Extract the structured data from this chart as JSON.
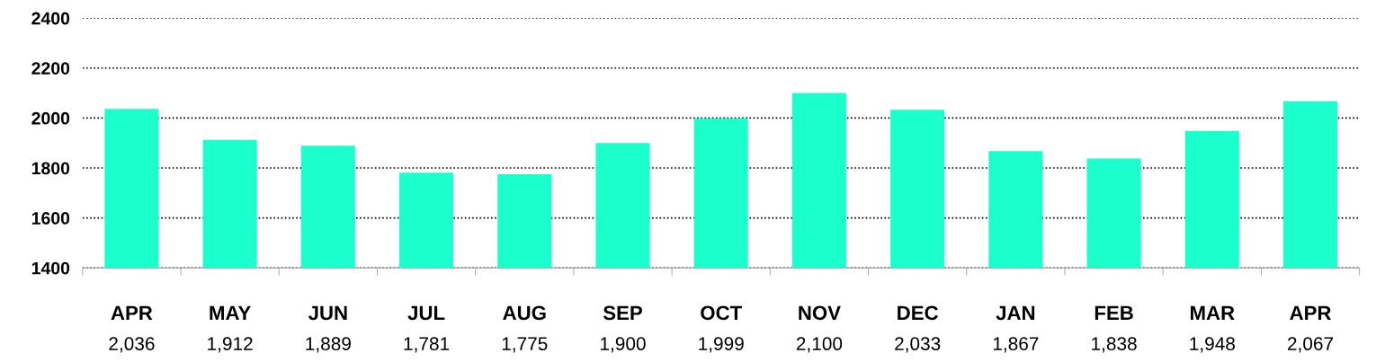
{
  "chart_data": {
    "type": "bar",
    "categories": [
      "APR",
      "MAY",
      "JUN",
      "JUL",
      "AUG",
      "SEP",
      "OCT",
      "NOV",
      "DEC",
      "JAN",
      "FEB",
      "MAR",
      "APR"
    ],
    "values": [
      2036,
      1912,
      1889,
      1781,
      1775,
      1900,
      1999,
      2100,
      2033,
      1867,
      1838,
      1948,
      2067
    ],
    "value_labels": [
      "2,036",
      "1,912",
      "1,889",
      "1,781",
      "1,775",
      "1,900",
      "1,999",
      "2,100",
      "2,033",
      "1,867",
      "1,838",
      "1,948",
      "2,067"
    ],
    "color": "#1affcc",
    "ylim": [
      1400,
      2400
    ],
    "yticks": [
      1400,
      1600,
      1800,
      2000,
      2200,
      2400
    ],
    "grid": "y"
  }
}
